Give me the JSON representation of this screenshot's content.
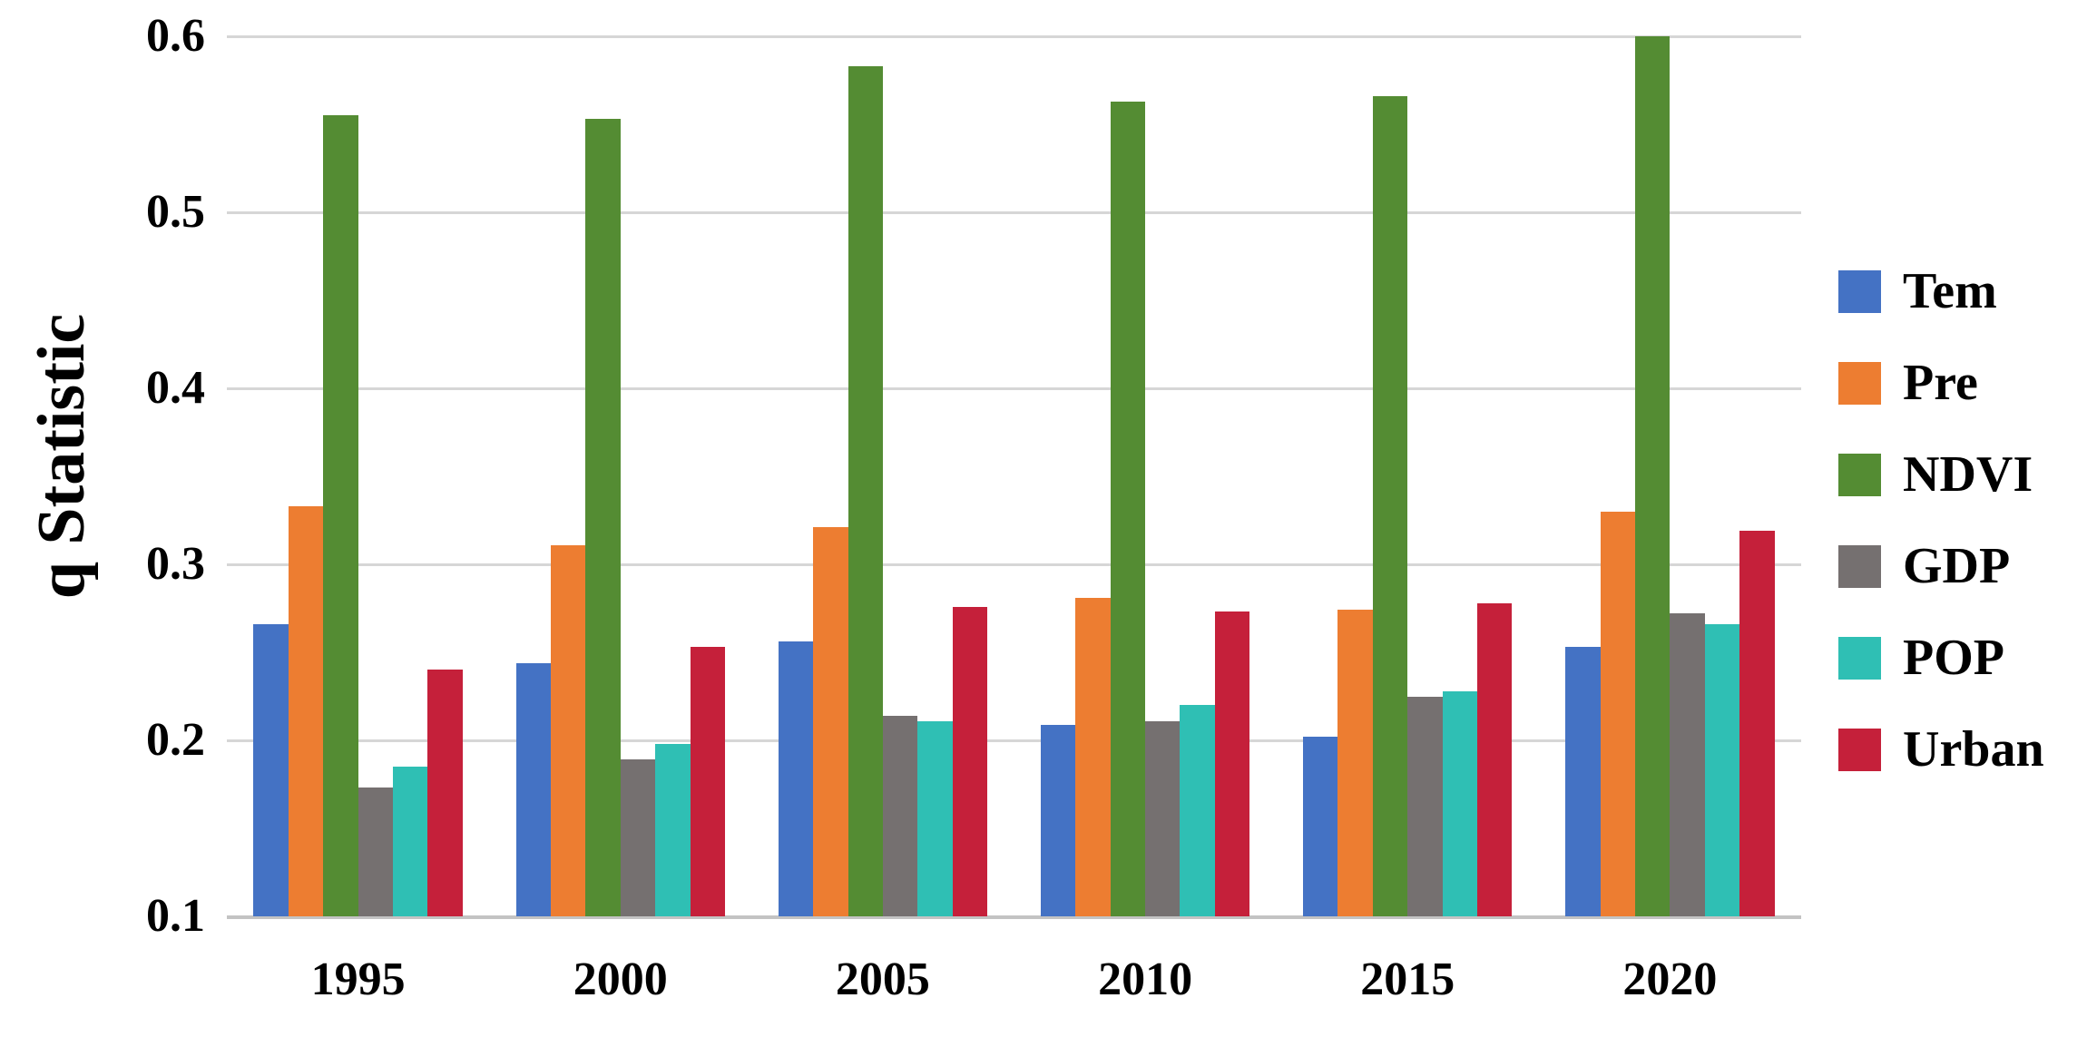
{
  "chart_data": {
    "type": "bar",
    "title": "",
    "xlabel": "",
    "ylabel": "q Statistic",
    "categories": [
      "1995",
      "2000",
      "2005",
      "2010",
      "2015",
      "2020"
    ],
    "series": [
      {
        "name": "Tem",
        "color": "#4472C4",
        "values": [
          0.266,
          0.244,
          0.256,
          0.209,
          0.202,
          0.253
        ]
      },
      {
        "name": "Pre",
        "color": "#ED7D31",
        "values": [
          0.333,
          0.311,
          0.321,
          0.281,
          0.274,
          0.33
        ]
      },
      {
        "name": "NDVI",
        "color": "#548C33",
        "values": [
          0.555,
          0.553,
          0.583,
          0.563,
          0.566,
          0.6
        ]
      },
      {
        "name": "GDP",
        "color": "#757070",
        "values": [
          0.173,
          0.189,
          0.214,
          0.211,
          0.225,
          0.272
        ]
      },
      {
        "name": "POP",
        "color": "#2FBFB4",
        "values": [
          0.185,
          0.198,
          0.211,
          0.22,
          0.228,
          0.266
        ]
      },
      {
        "name": "Urban",
        "color": "#C5203A",
        "values": [
          0.24,
          0.253,
          0.276,
          0.273,
          0.278,
          0.319
        ]
      }
    ],
    "ylim": [
      0.1,
      0.6
    ],
    "yticks": [
      0.6,
      0.5,
      0.4,
      0.3,
      0.2,
      0.1
    ],
    "ytick_labels": [
      "0.6",
      "0.5",
      "0.4",
      "0.3",
      "0.2",
      "0.1"
    ],
    "grid": true,
    "gridline_color": "#d6d6d6",
    "axisline_color": "#c3c3c3",
    "legend_position": "right",
    "legend_entries": [
      "Tem",
      "Pre",
      "NDVI",
      "GDP",
      "POP",
      "Urban"
    ]
  }
}
